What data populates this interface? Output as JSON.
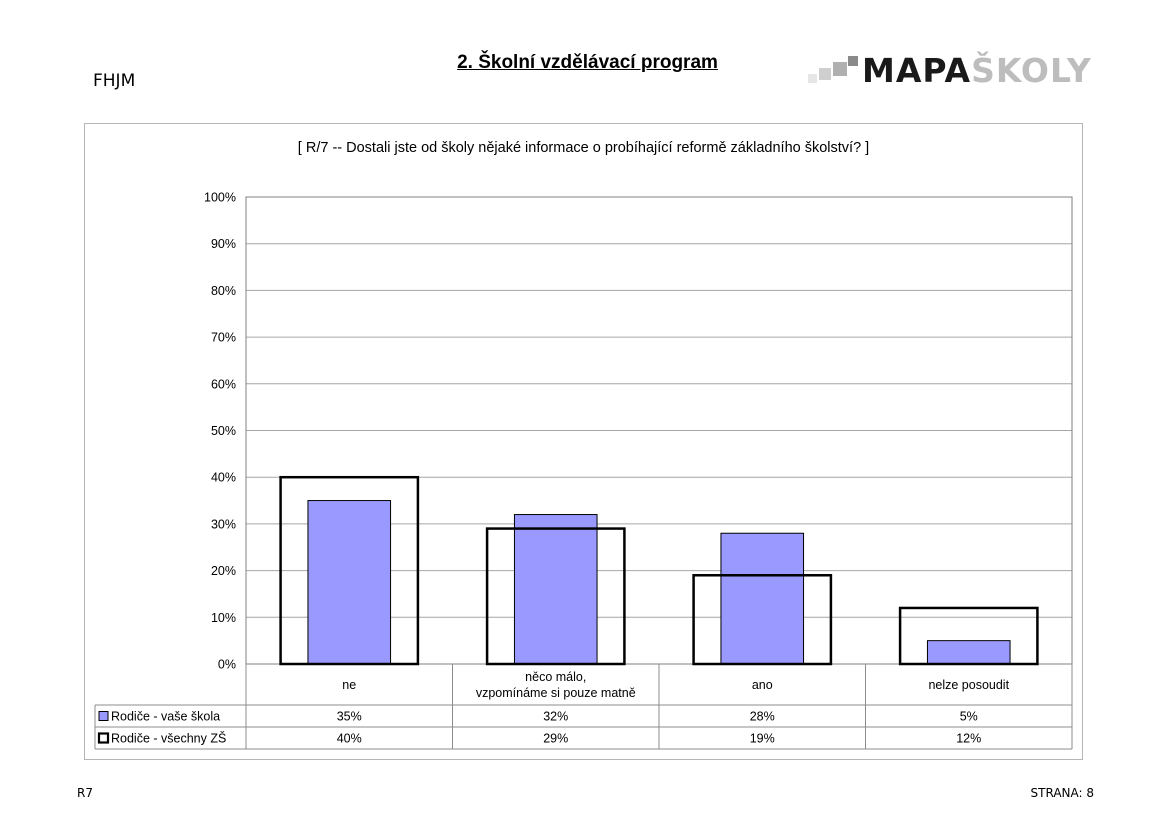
{
  "header": {
    "school_code": "FHJM",
    "title": "2. Školní vzdělávací program",
    "logo": {
      "dark": "MAPA",
      "light": "ŠKOLY"
    }
  },
  "footer": {
    "left": "R7",
    "right": "STRANA: 8"
  },
  "colors": {
    "series1_fill": "#9999ff",
    "series2_stroke": "#000000",
    "grid": "#a6a6a6"
  },
  "chart_data": {
    "type": "bar",
    "title": "[ R/7 -- Dostali jste od školy nějaké informace o probíhající reformě základního školství? ]",
    "categories": [
      [
        "ne"
      ],
      [
        "něco málo,",
        "vzpomínáme si pouze matně"
      ],
      [
        "ano"
      ],
      [
        "nelze posoudit"
      ]
    ],
    "y_ticks": [
      "0%",
      "10%",
      "20%",
      "30%",
      "40%",
      "50%",
      "60%",
      "70%",
      "80%",
      "90%",
      "100%"
    ],
    "ylim": [
      0,
      100
    ],
    "grid": true,
    "legend": "data-table",
    "series": [
      {
        "name": "Rodiče - vaše škola",
        "style": "filled",
        "values": [
          35,
          32,
          28,
          5
        ],
        "labels": [
          "35%",
          "32%",
          "28%",
          "5%"
        ]
      },
      {
        "name": "Rodiče - všechny ZŠ",
        "style": "outline",
        "values": [
          40,
          29,
          19,
          12
        ],
        "labels": [
          "40%",
          "29%",
          "19%",
          "12%"
        ]
      }
    ]
  }
}
